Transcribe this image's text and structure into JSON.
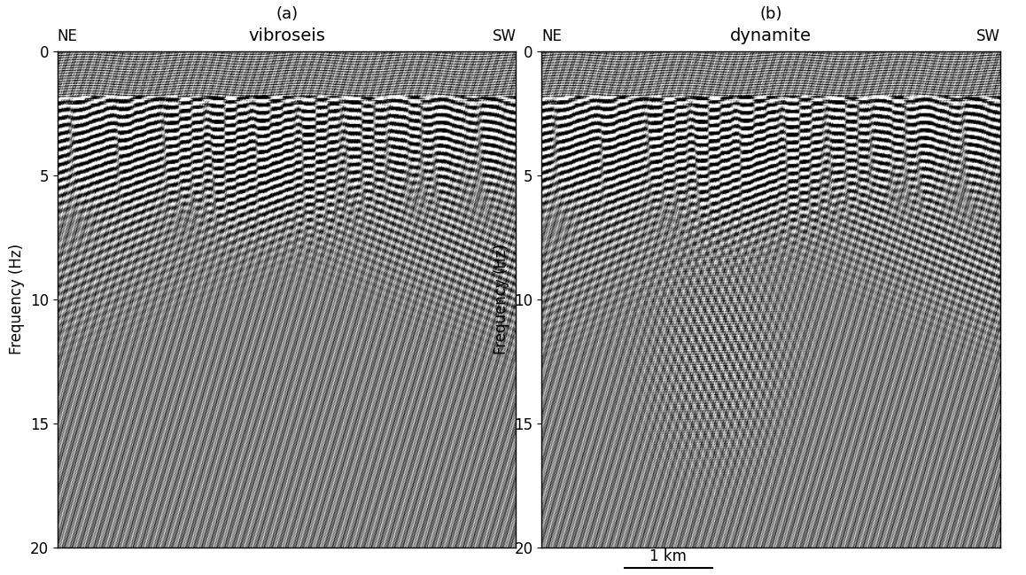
{
  "chart_data": [
    {
      "type": "image",
      "panel": "(a)",
      "title": "vibroseis",
      "annotations": [
        "NE",
        "SW"
      ],
      "ylabel": "Frequency (Hz)",
      "xlim": [
        0,
        5.2
      ],
      "xticks": [],
      "ylim": [
        20,
        0
      ],
      "yticks": [
        0,
        5,
        10,
        15,
        20
      ],
      "tick_labels": "y",
      "color": "gray"
    },
    {
      "type": "image",
      "panel": "(b)",
      "title": "dynamite",
      "annotations": [
        "NE",
        "SW"
      ],
      "ylabel": "Frequency (Hz)",
      "xlim": [
        0,
        5.2
      ],
      "xticks": [],
      "ylim": [
        20,
        0
      ],
      "yticks": [
        0,
        5,
        10,
        15,
        20
      ],
      "tick_labels": "y",
      "color": "gray",
      "scale_bar": {
        "label": "1 km",
        "length": 1
      }
    }
  ]
}
